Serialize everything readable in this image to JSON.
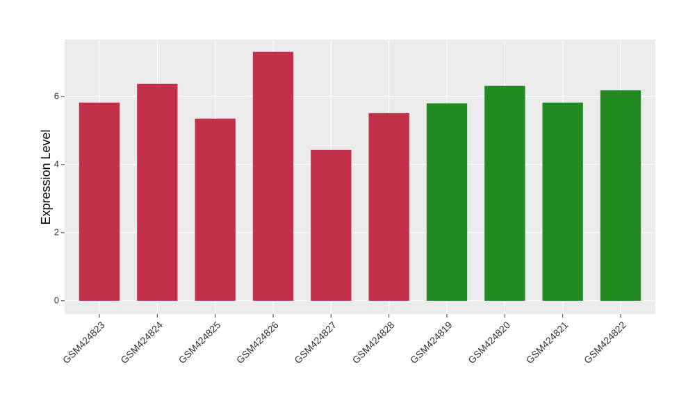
{
  "chart_data": {
    "type": "bar",
    "y_label": "Expression Level",
    "categories": [
      "GSM424823",
      "GSM424824",
      "GSM424825",
      "GSM424826",
      "GSM424827",
      "GSM424828",
      "GSM424819",
      "GSM424820",
      "GSM424821",
      "GSM424822"
    ],
    "values": [
      5.82,
      6.37,
      5.35,
      7.31,
      4.43,
      5.51,
      5.8,
      6.31,
      5.82,
      6.18
    ],
    "colors": [
      "#c3304a",
      "#c3304a",
      "#c3304a",
      "#c3304a",
      "#c3304a",
      "#c3304a",
      "#228b22",
      "#228b22",
      "#228b22",
      "#228b22"
    ],
    "ylim": [
      -0.39,
      7.67
    ],
    "yticks": [
      0,
      2,
      4,
      6
    ],
    "grid": true
  }
}
